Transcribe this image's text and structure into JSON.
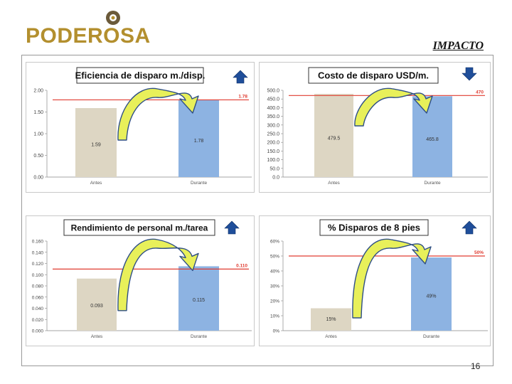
{
  "brand": {
    "logo_text": "PODEROSA",
    "logo_color": "#b38f2e",
    "logo_mark": "ring-dot-mark"
  },
  "slide_title": "IMPACTO",
  "page_number": "16",
  "colors": {
    "antes": "#ddd6c3",
    "durante": "#8db3e2",
    "target_line": "#e03c31",
    "arrow_fill": "#e8f05a",
    "arrow_stroke": "#2f4f86",
    "up_arrow": "#1f4e9a"
  },
  "chart_data": [
    {
      "type": "bar",
      "title": "Eficiencia de disparo m./disp.",
      "categories": [
        "Antes",
        "Durante"
      ],
      "values": [
        1.59,
        1.78
      ],
      "value_labels": [
        "1.59",
        "1.78"
      ],
      "ylim": [
        0,
        2
      ],
      "yticks": [
        "0.00",
        "0.50",
        "1.00",
        "1.50",
        "2.00"
      ],
      "ytick_values": [
        0,
        0.5,
        1,
        1.5,
        2
      ],
      "target": 1.78,
      "target_label": "1.78",
      "trend_icon": "up-arrow-icon"
    },
    {
      "type": "bar",
      "title": "Costo de disparo USD/m.",
      "categories": [
        "Antes",
        "Durante"
      ],
      "values": [
        479.5,
        465.8
      ],
      "value_labels": [
        "479.5",
        "465.8"
      ],
      "ylim": [
        0,
        500
      ],
      "yticks": [
        "0.0",
        "50.0",
        "100.0",
        "150.0",
        "200.0",
        "250.0",
        "300.0",
        "350.0",
        "400.0",
        "450.0",
        "500.0"
      ],
      "ytick_values": [
        0,
        50,
        100,
        150,
        200,
        250,
        300,
        350,
        400,
        450,
        500
      ],
      "target": 470,
      "target_label": "470",
      "trend_icon": "down-arrow-icon"
    },
    {
      "type": "bar",
      "title": "Rendimiento de personal m./tarea",
      "categories": [
        "Antes",
        "Durante"
      ],
      "values": [
        0.093,
        0.115
      ],
      "value_labels": [
        "0.093",
        "0.115"
      ],
      "ylim": [
        0,
        0.16
      ],
      "yticks": [
        "0.000",
        "0.020",
        "0.040",
        "0.060",
        "0.080",
        "0.100",
        "0.120",
        "0.140",
        "0.160"
      ],
      "ytick_values": [
        0,
        0.02,
        0.04,
        0.06,
        0.08,
        0.1,
        0.12,
        0.14,
        0.16
      ],
      "target": 0.11,
      "target_label": "0.110",
      "trend_icon": "up-arrow-icon"
    },
    {
      "type": "bar",
      "title": "% Disparos de 8 pies",
      "categories": [
        "Antes",
        "Durante"
      ],
      "values": [
        15,
        49
      ],
      "value_labels": [
        "15%",
        "49%"
      ],
      "ylim": [
        0,
        60
      ],
      "yticks": [
        "0%",
        "10%",
        "20%",
        "30%",
        "40%",
        "50%",
        "60%"
      ],
      "ytick_values": [
        0,
        10,
        20,
        30,
        40,
        50,
        60
      ],
      "target": 50,
      "target_label": "50%",
      "trend_icon": "up-arrow-icon"
    }
  ]
}
